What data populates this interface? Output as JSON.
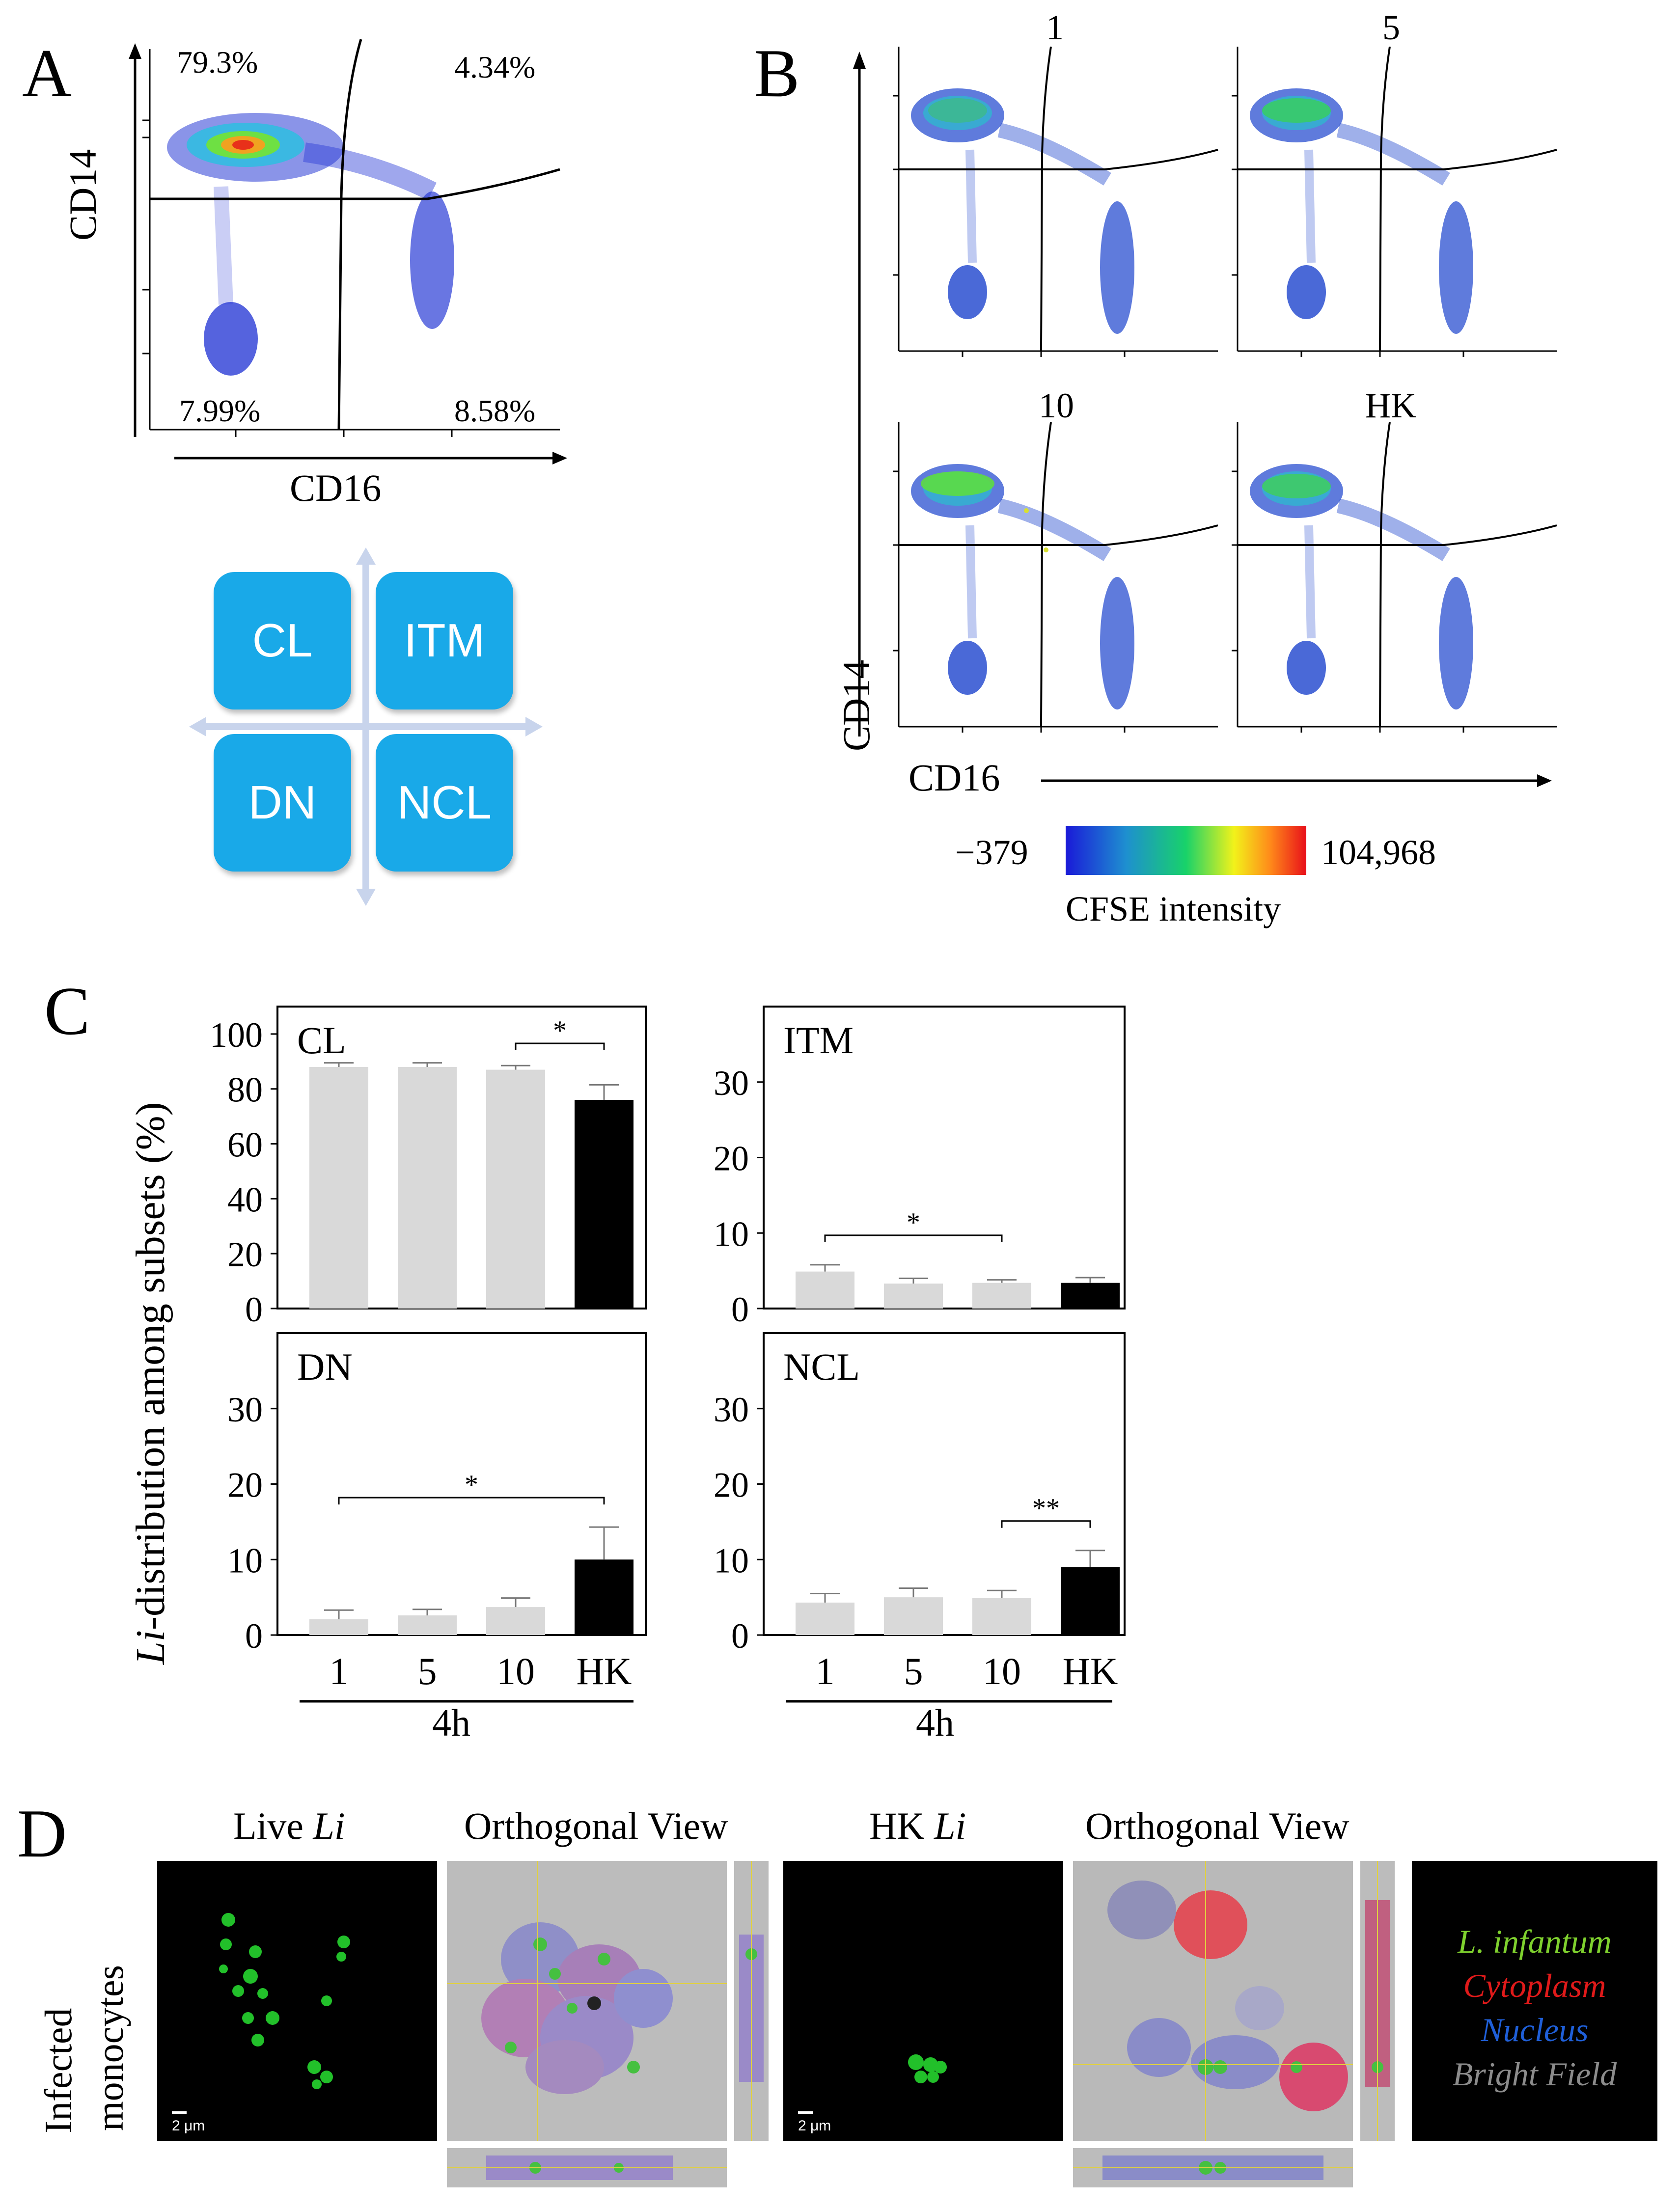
{
  "panels": {
    "a": "A",
    "b": "B",
    "c": "C",
    "d": "D"
  },
  "panel_a": {
    "quadrant_labels": {
      "top_left": "79.3%",
      "top_right": "4.34%",
      "bottom_left": "7.99%",
      "bottom_right": "8.58%"
    },
    "xlabel": "CD16",
    "ylabel": "CD14",
    "subset_chips": [
      "CL",
      "ITM",
      "DN",
      "NCL"
    ],
    "chip_color": "#19a9e8"
  },
  "panel_b": {
    "plot_titles": [
      "1",
      "5",
      "10",
      "HK"
    ],
    "xlabel": "CD16",
    "ylabel": "CD14",
    "colorbar": {
      "min_label": "−379",
      "max_label": "104,968",
      "label": "CFSE intensity",
      "colors": [
        "#1a1ad8",
        "#1e8fd0",
        "#18d26a",
        "#f2f21a",
        "#ff8a1a",
        "#e8101a"
      ]
    }
  },
  "chart_data": [
    {
      "type": "bar",
      "title": "CL",
      "categories": [
        "1",
        "5",
        "10",
        "HK"
      ],
      "values": [
        88,
        88,
        87,
        76
      ],
      "errors": [
        1.5,
        1.5,
        1.5,
        5.5
      ],
      "ylim": [
        0,
        110
      ],
      "yticks": [
        0,
        20,
        40,
        60,
        80,
        100
      ],
      "significance": [
        {
          "from": 2,
          "to": 3,
          "label": "*"
        }
      ]
    },
    {
      "type": "bar",
      "title": "ITM",
      "categories": [
        "1",
        "5",
        "10",
        "HK"
      ],
      "values": [
        4.9,
        3.3,
        3.4,
        3.4
      ],
      "errors": [
        0.9,
        0.7,
        0.4,
        0.7
      ],
      "ylim": [
        0,
        40
      ],
      "yticks": [
        0,
        10,
        20,
        30
      ],
      "significance": [
        {
          "from": 0,
          "to": 2,
          "label": "*"
        }
      ]
    },
    {
      "type": "bar",
      "title": "DN",
      "categories": [
        "1",
        "5",
        "10",
        "HK"
      ],
      "values": [
        2.1,
        2.6,
        3.7,
        10.0
      ],
      "errors": [
        1.2,
        0.8,
        1.2,
        4.3
      ],
      "ylim": [
        0,
        40
      ],
      "yticks": [
        0,
        10,
        20,
        30
      ],
      "significance": [
        {
          "from": 0,
          "to": 3,
          "label": "*"
        }
      ]
    },
    {
      "type": "bar",
      "title": "NCL",
      "categories": [
        "1",
        "5",
        "10",
        "HK"
      ],
      "values": [
        4.3,
        5.0,
        4.9,
        9.0
      ],
      "errors": [
        1.2,
        1.2,
        1.0,
        2.2
      ],
      "ylim": [
        0,
        40
      ],
      "yticks": [
        0,
        10,
        20,
        30
      ],
      "significance": [
        {
          "from": 2,
          "to": 3,
          "label": "**"
        }
      ]
    }
  ],
  "panel_c": {
    "ylabel_italic": "Li",
    "ylabel_rest": "-distribution among subsets (%)",
    "time_label": "4h",
    "bar_colors": {
      "live": "#d9d9d9",
      "hk": "#000000"
    }
  },
  "panel_d": {
    "headers": {
      "live_prefix": "Live ",
      "live_italic": "Li",
      "ortho1": "Orthogonal View",
      "hk_prefix": "HK ",
      "hk_italic": "Li",
      "ortho2": "Orthogonal View"
    },
    "row_label_1": "Infected",
    "row_label_2": "monocytes",
    "scale_bar": "2 μm",
    "legend": [
      {
        "label": "L. infantum",
        "color": "#7fd12e"
      },
      {
        "label": "Cytoplasm",
        "color": "#e01a1a"
      },
      {
        "label": "Nucleus",
        "color": "#1f5fd8"
      },
      {
        "label": "Bright Field",
        "color": "#8c8c8c"
      }
    ]
  }
}
